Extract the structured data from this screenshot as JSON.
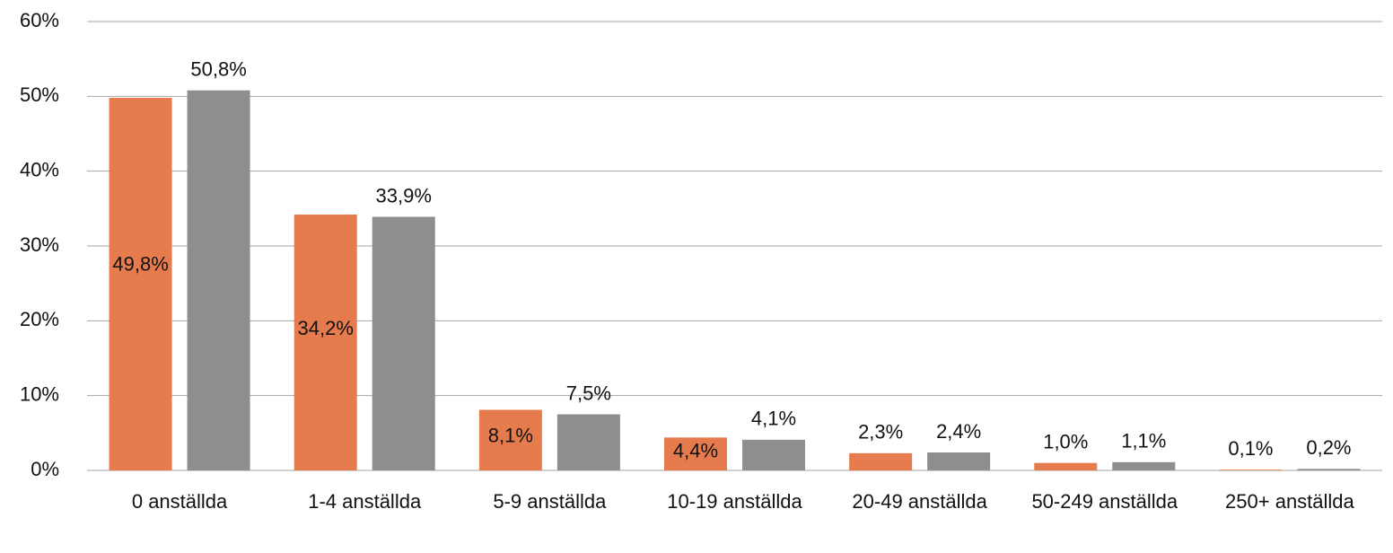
{
  "chart_data": {
    "type": "bar",
    "categories": [
      "0 anställda",
      "1-4 anställda",
      "5-9 anställda",
      "10-19 anställda",
      "20-49 anställda",
      "50-249 anställda",
      "250+ anställda"
    ],
    "series": [
      {
        "color": "#e67c4e",
        "values": [
          49.8,
          34.2,
          8.1,
          4.4,
          2.3,
          1.0,
          0.1
        ],
        "value_labels": [
          "49,8%",
          "34,2%",
          "8,1%",
          "4,4%",
          "2,3%",
          "1,0%",
          "0,1%"
        ]
      },
      {
        "color": "#8c8f8d",
        "values": [
          50.8,
          33.9,
          7.5,
          4.1,
          2.4,
          1.1,
          0.2
        ],
        "value_labels": [
          "50,8%",
          "33,9%",
          "7,5%",
          "4,1%",
          "2,4%",
          "1,1%",
          "0,2%"
        ]
      }
    ],
    "ylim": [
      0,
      60
    ],
    "yticks": [
      {
        "value": 0,
        "label": "0%"
      },
      {
        "value": 10,
        "label": "10%"
      },
      {
        "value": 20,
        "label": "20%"
      },
      {
        "value": 30,
        "label": "30%"
      },
      {
        "value": 40,
        "label": "40%"
      },
      {
        "value": 50,
        "label": "50%"
      },
      {
        "value": 60,
        "label": "60%"
      }
    ],
    "grid": true
  }
}
